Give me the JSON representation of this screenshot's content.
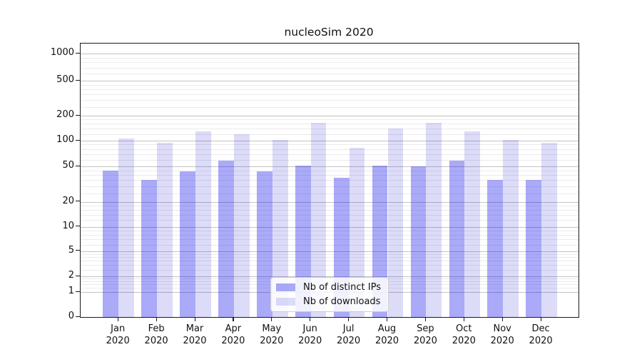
{
  "chart_data": {
    "type": "bar",
    "title": "nucleoSim 2020",
    "months": [
      "Jan",
      "Feb",
      "Mar",
      "Apr",
      "May",
      "Jun",
      "Jul",
      "Aug",
      "Sep",
      "Oct",
      "Nov",
      "Dec"
    ],
    "year_label": "2020",
    "series": [
      {
        "name": "Nb of distinct IPs",
        "values": [
          45,
          35,
          44,
          58,
          44,
          51,
          37,
          51,
          50,
          58,
          35,
          35
        ]
      },
      {
        "name": "Nb of downloads",
        "values": [
          106,
          95,
          130,
          120,
          102,
          165,
          82,
          140,
          165,
          130,
          102,
          95
        ]
      }
    ],
    "yscale": "symlog",
    "ylim": [
      0,
      1300
    ],
    "ytick_values": [
      0,
      1,
      2,
      5,
      10,
      20,
      50,
      100,
      200,
      500,
      1000
    ],
    "ytick_labels": [
      "0",
      "1",
      "2",
      "5",
      "10",
      "20",
      "50",
      "100",
      "200",
      "500",
      "1000"
    ],
    "minor_gridline_subs": [
      1.2,
      1.4,
      1.6,
      1.8,
      2.5,
      3,
      3.5,
      4,
      4.5,
      6,
      7,
      8,
      9
    ],
    "grid": true,
    "legend_position": "lower center"
  },
  "colors": {
    "bar_distinct_ips": "#aaaaf8",
    "bar_downloads": "#dcdcf8",
    "bar_distinct_ips_rgba": "rgba(5,5,235,0.34)",
    "bar_downloads_rgba": "rgba(5,5,205,0.14)",
    "grid_major": "#c3c3c3",
    "grid_minor": "#ebebeb",
    "axis_line": "#1a1a1a",
    "text": "#111111"
  }
}
